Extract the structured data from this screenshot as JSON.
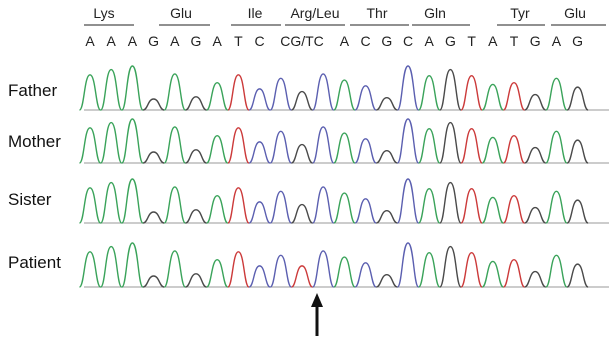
{
  "codons": [
    {
      "aa": "Lys",
      "nt": [
        "A",
        "A",
        "A"
      ]
    },
    {
      "aa": "Glu",
      "nt": [
        "G",
        "A",
        "G"
      ]
    },
    {
      "aa": "Ile",
      "nt": [
        "A",
        "T",
        "C"
      ]
    },
    {
      "aa": "Arg/Leu",
      "nt": [
        "CG/TC"
      ]
    },
    {
      "aa": "Thr",
      "nt": [
        "A",
        "C",
        "G"
      ]
    },
    {
      "aa": "Gln",
      "nt": [
        "C",
        "A",
        "G"
      ]
    },
    {
      "aa": "Tyr",
      "nt": [
        "T",
        "A",
        "T"
      ]
    },
    {
      "aa": "Glu",
      "nt": [
        "G",
        "A",
        "G"
      ]
    }
  ],
  "samples": [
    {
      "label": "Father"
    },
    {
      "label": "Mother"
    },
    {
      "label": "Sister"
    },
    {
      "label": "Patient"
    }
  ],
  "colors": {
    "A": "#3aa35a",
    "C": "#5b5fb0",
    "G": "#4a4a4a",
    "T": "#cc3a3a",
    "baseline": "#777777",
    "arrow": "#111111"
  },
  "traces": {
    "normal": [
      {
        "b": "A",
        "h": 0.8
      },
      {
        "b": "A",
        "h": 0.92
      },
      {
        "b": "A",
        "h": 1.0
      },
      {
        "b": "G",
        "h": 0.25
      },
      {
        "b": "A",
        "h": 0.82
      },
      {
        "b": "G",
        "h": 0.3
      },
      {
        "b": "A",
        "h": 0.62
      },
      {
        "b": "T",
        "h": 0.8
      },
      {
        "b": "C",
        "h": 0.48
      },
      {
        "b": "C",
        "h": 0.72
      },
      {
        "b": "G",
        "h": 0.42
      },
      {
        "b": "C",
        "h": 0.82
      },
      {
        "b": "A",
        "h": 0.68
      },
      {
        "b": "C",
        "h": 0.55
      },
      {
        "b": "G",
        "h": 0.28
      },
      {
        "b": "C",
        "h": 1.0
      },
      {
        "b": "A",
        "h": 0.78
      },
      {
        "b": "G",
        "h": 0.92
      },
      {
        "b": "T",
        "h": 0.78
      },
      {
        "b": "A",
        "h": 0.58
      },
      {
        "b": "T",
        "h": 0.62
      },
      {
        "b": "G",
        "h": 0.35
      },
      {
        "b": "A",
        "h": 0.72
      },
      {
        "b": "G",
        "h": 0.52
      }
    ],
    "patient": [
      {
        "b": "A",
        "h": 0.8
      },
      {
        "b": "A",
        "h": 0.92
      },
      {
        "b": "A",
        "h": 1.0
      },
      {
        "b": "G",
        "h": 0.25
      },
      {
        "b": "A",
        "h": 0.82
      },
      {
        "b": "G",
        "h": 0.3
      },
      {
        "b": "A",
        "h": 0.62
      },
      {
        "b": "T",
        "h": 0.8
      },
      {
        "b": "C",
        "h": 0.48
      },
      {
        "b": "C",
        "h": 0.72
      },
      {
        "b": "T",
        "h": 0.48
      },
      {
        "b": "C",
        "h": 0.82
      },
      {
        "b": "A",
        "h": 0.68
      },
      {
        "b": "C",
        "h": 0.55
      },
      {
        "b": "G",
        "h": 0.28
      },
      {
        "b": "C",
        "h": 1.0
      },
      {
        "b": "A",
        "h": 0.78
      },
      {
        "b": "G",
        "h": 0.92
      },
      {
        "b": "T",
        "h": 0.78
      },
      {
        "b": "A",
        "h": 0.58
      },
      {
        "b": "T",
        "h": 0.62
      },
      {
        "b": "G",
        "h": 0.35
      },
      {
        "b": "A",
        "h": 0.72
      },
      {
        "b": "G",
        "h": 0.52
      }
    ]
  },
  "mutation_site": {
    "codon_index": 3
  }
}
